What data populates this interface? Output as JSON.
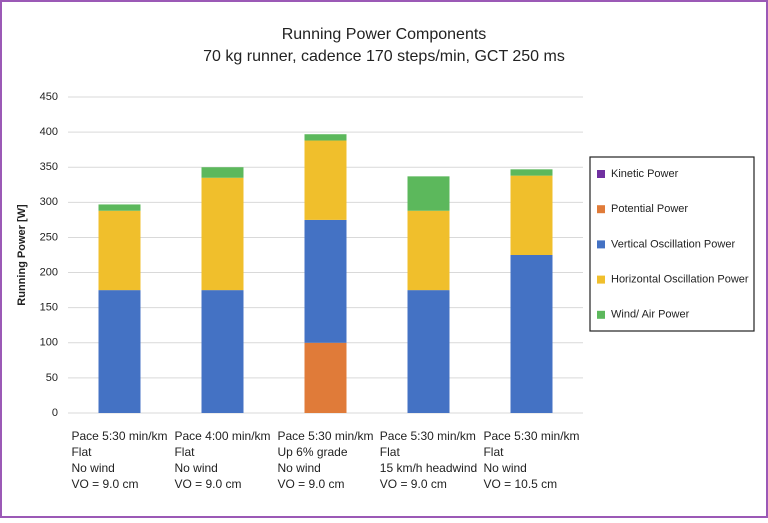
{
  "chart_data": {
    "type": "stacked-bar",
    "title": "Running Power Components",
    "subtitle": "70 kg runner, cadence 170 steps/min, GCT 250 ms",
    "y_label": "Running Power [W]",
    "categories": [
      [
        "Pace 5:30 min/km",
        "Flat",
        "No wind",
        "VO = 9.0 cm"
      ],
      [
        "Pace 4:00 min/km",
        "Flat",
        "No wind",
        "VO = 9.0 cm"
      ],
      [
        "Pace 5:30 min/km",
        "Up 6% grade",
        "No wind",
        "VO = 9.0 cm"
      ],
      [
        "Pace 5:30 min/km",
        "Flat",
        "15 km/h headwind",
        "VO = 9.0 cm"
      ],
      [
        "Pace 5:30 min/km",
        "Flat",
        "No wind",
        "VO = 10.5 cm"
      ]
    ],
    "series": [
      {
        "name": "Kinetic Power",
        "color": "#7030a0",
        "values": [
          0,
          0,
          0,
          0,
          0
        ]
      },
      {
        "name": "Potential Power",
        "color": "#e07b39",
        "values": [
          0,
          0,
          100,
          0,
          0
        ]
      },
      {
        "name": "Vertical Oscillation Power",
        "color": "#4472c4",
        "values": [
          175,
          175,
          175,
          175,
          225
        ]
      },
      {
        "name": "Horizontal Oscillation Power",
        "color": "#f0bf2c",
        "values": [
          113,
          160,
          113,
          113,
          113
        ]
      },
      {
        "name": "Wind/ Air Power",
        "color": "#5cb85c",
        "values": [
          9,
          15,
          9,
          49,
          9
        ]
      }
    ],
    "ylim": [
      0,
      450
    ],
    "yticks": [
      0,
      50,
      100,
      150,
      200,
      250,
      300,
      350,
      400,
      450
    ],
    "grid": true,
    "legend": "right"
  }
}
